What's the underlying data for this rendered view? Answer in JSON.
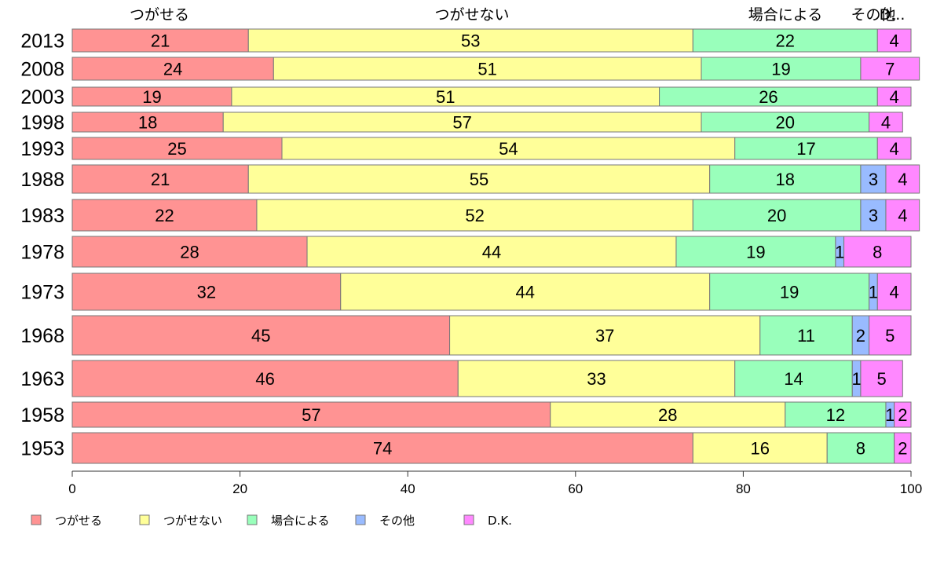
{
  "chart_data": {
    "type": "bar",
    "orientation": "horizontal",
    "stacked": true,
    "categories": [
      "2013",
      "2008",
      "2003",
      "1998",
      "1993",
      "1988",
      "1983",
      "1978",
      "1973",
      "1968",
      "1963",
      "1958",
      "1953"
    ],
    "series": [
      {
        "name": "つがせる",
        "color": "#ff9393",
        "values": [
          21,
          24,
          19,
          18,
          25,
          21,
          22,
          28,
          32,
          45,
          46,
          57,
          74
        ]
      },
      {
        "name": "つがせない",
        "color": "#ffff99",
        "values": [
          53,
          51,
          51,
          57,
          54,
          55,
          52,
          44,
          44,
          37,
          33,
          28,
          16
        ]
      },
      {
        "name": "場合による",
        "color": "#99ffbb",
        "values": [
          22,
          19,
          26,
          20,
          17,
          18,
          20,
          19,
          19,
          11,
          14,
          12,
          8
        ]
      },
      {
        "name": "その他",
        "color": "#99bbff",
        "values": [
          0,
          0,
          0,
          0,
          0,
          3,
          3,
          1,
          1,
          2,
          1,
          1,
          0
        ]
      },
      {
        "name": "D.K.",
        "color": "#ff88ff",
        "values": [
          4,
          7,
          4,
          4,
          4,
          4,
          4,
          8,
          4,
          5,
          5,
          2,
          2
        ]
      }
    ],
    "top_labels": [
      "つがせる",
      "つがせない",
      "場合による",
      "その他",
      "D..."
    ],
    "xlim": [
      0,
      100
    ],
    "xticks": [
      0,
      20,
      40,
      60,
      80,
      100
    ],
    "xlabel": "",
    "ylabel": "",
    "grid": false,
    "legend_position": "bottom-left"
  }
}
